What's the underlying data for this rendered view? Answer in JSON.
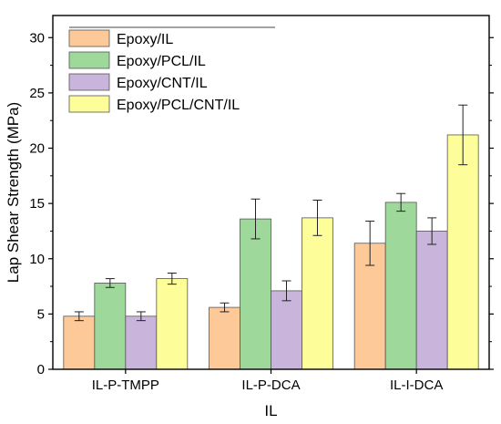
{
  "chart_data": {
    "type": "bar",
    "title": "",
    "xlabel": "IL",
    "ylabel": "Lap Shear Strength (MPa)",
    "ylim": [
      0,
      32
    ],
    "yticks": [
      0,
      5,
      10,
      15,
      20,
      25,
      30
    ],
    "categories": [
      "IL-P-TMPP",
      "IL-P-DCA",
      "IL-I-DCA"
    ],
    "legend_position": "top-left",
    "series": [
      {
        "name": "Epoxy/IL",
        "color": "#fdc998",
        "values": [
          4.8,
          5.6,
          11.4
        ],
        "errors": [
          0.4,
          0.4,
          2.0
        ]
      },
      {
        "name": "Epoxy/PCL/IL",
        "color": "#9ed89a",
        "values": [
          7.8,
          13.6,
          15.1
        ],
        "errors": [
          0.4,
          1.8,
          0.8
        ]
      },
      {
        "name": "Epoxy/CNT/IL",
        "color": "#c9b5dc",
        "values": [
          4.8,
          7.1,
          12.5
        ],
        "errors": [
          0.4,
          0.9,
          1.2
        ]
      },
      {
        "name": "Epoxy/PCL/CNT/IL",
        "color": "#fdfd9a",
        "values": [
          8.2,
          13.7,
          21.2
        ],
        "errors": [
          0.5,
          1.6,
          2.7
        ]
      }
    ]
  }
}
